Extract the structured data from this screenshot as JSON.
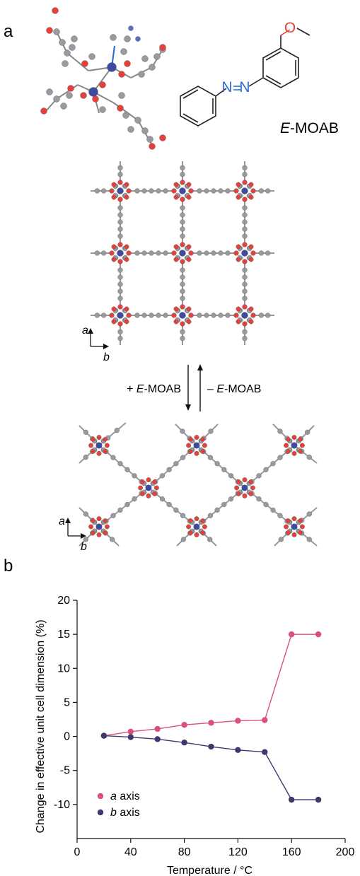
{
  "panel_a": {
    "label": "a",
    "molecule_name_prefix": "E",
    "molecule_name_suffix": "-MOAB",
    "molecule_atoms": {
      "oxygen": "O",
      "nitrogen": "N"
    },
    "forward_arrow_prefix": "+ ",
    "forward_arrow_italic": "E",
    "forward_arrow_suffix": "-MOAB",
    "reverse_arrow_prefix": "– ",
    "reverse_arrow_italic": "E",
    "reverse_arrow_suffix": "-MOAB",
    "axis_label_a": "a",
    "axis_label_b": "b"
  },
  "colors": {
    "oxygen": "#e5403a",
    "metal": "#3c4aa2",
    "carbon": "#9a9aa2",
    "nitrogen_bond": "#2c6fd6",
    "a_series": "#d9517a",
    "b_series": "#3a3a6e"
  },
  "chart_data": {
    "type": "line",
    "panel_label": "b",
    "xlabel": "Temperature / °C",
    "ylabel": "Change in effective unit cell dimension (%)",
    "xlim": [
      0,
      200
    ],
    "ylim": [
      -15,
      20
    ],
    "xticks": [
      0,
      40,
      80,
      120,
      160,
      200
    ],
    "yticks": [
      20,
      15,
      10,
      5,
      0,
      -5,
      -10
    ],
    "x": [
      20,
      40,
      60,
      80,
      100,
      120,
      140,
      160,
      180
    ],
    "series": [
      {
        "name_italic": "a",
        "name_rest": " axis",
        "color": "#d9517a",
        "values": [
          0.1,
          0.7,
          1.1,
          1.7,
          2.0,
          2.3,
          2.4,
          15.0,
          15.0
        ]
      },
      {
        "name_italic": "b",
        "name_rest": " axis",
        "color": "#3a3a6e",
        "values": [
          0.1,
          -0.1,
          -0.4,
          -0.9,
          -1.5,
          -2.0,
          -2.3,
          -9.3,
          -9.3
        ]
      }
    ],
    "legend_position": "bottom-left",
    "grid": false
  }
}
